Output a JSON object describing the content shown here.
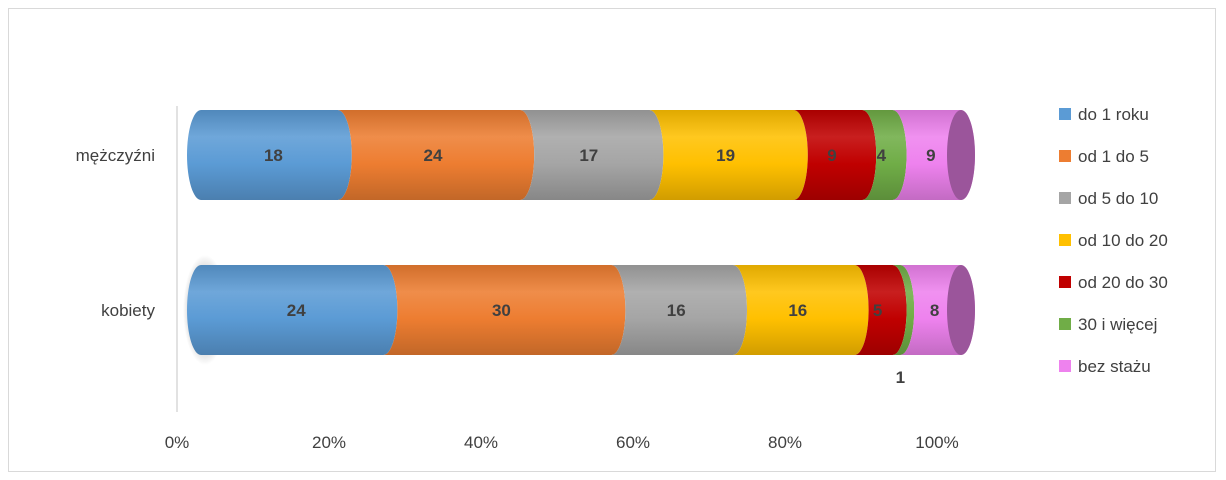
{
  "chart_data": {
    "type": "bar",
    "orientation": "horizontal",
    "stacked": "percent",
    "style": "3d-cylinder",
    "categories": [
      "mężczyźni",
      "kobiety"
    ],
    "series": [
      {
        "name": "do 1 roku",
        "color": "#5b9bd5",
        "values": [
          18,
          24
        ]
      },
      {
        "name": "od 1 do 5",
        "color": "#ed7d31",
        "values": [
          24,
          30
        ]
      },
      {
        "name": "od 5 do 10",
        "color": "#a5a5a5",
        "values": [
          17,
          16
        ]
      },
      {
        "name": "od 10 do 20",
        "color": "#ffc000",
        "values": [
          19,
          16
        ]
      },
      {
        "name": "od 20 do 30",
        "color": "#c00000",
        "values": [
          9,
          5
        ]
      },
      {
        "name": "30 i więcej",
        "color": "#70ad47",
        "values": [
          4,
          1
        ]
      },
      {
        "name": "bez stażu",
        "color": "#ee82ee",
        "values": [
          9,
          8
        ]
      }
    ],
    "x_ticks": [
      "0%",
      "20%",
      "40%",
      "60%",
      "80%",
      "100%"
    ],
    "xlim": [
      0,
      100
    ],
    "legend_position": "right",
    "grid": false
  }
}
